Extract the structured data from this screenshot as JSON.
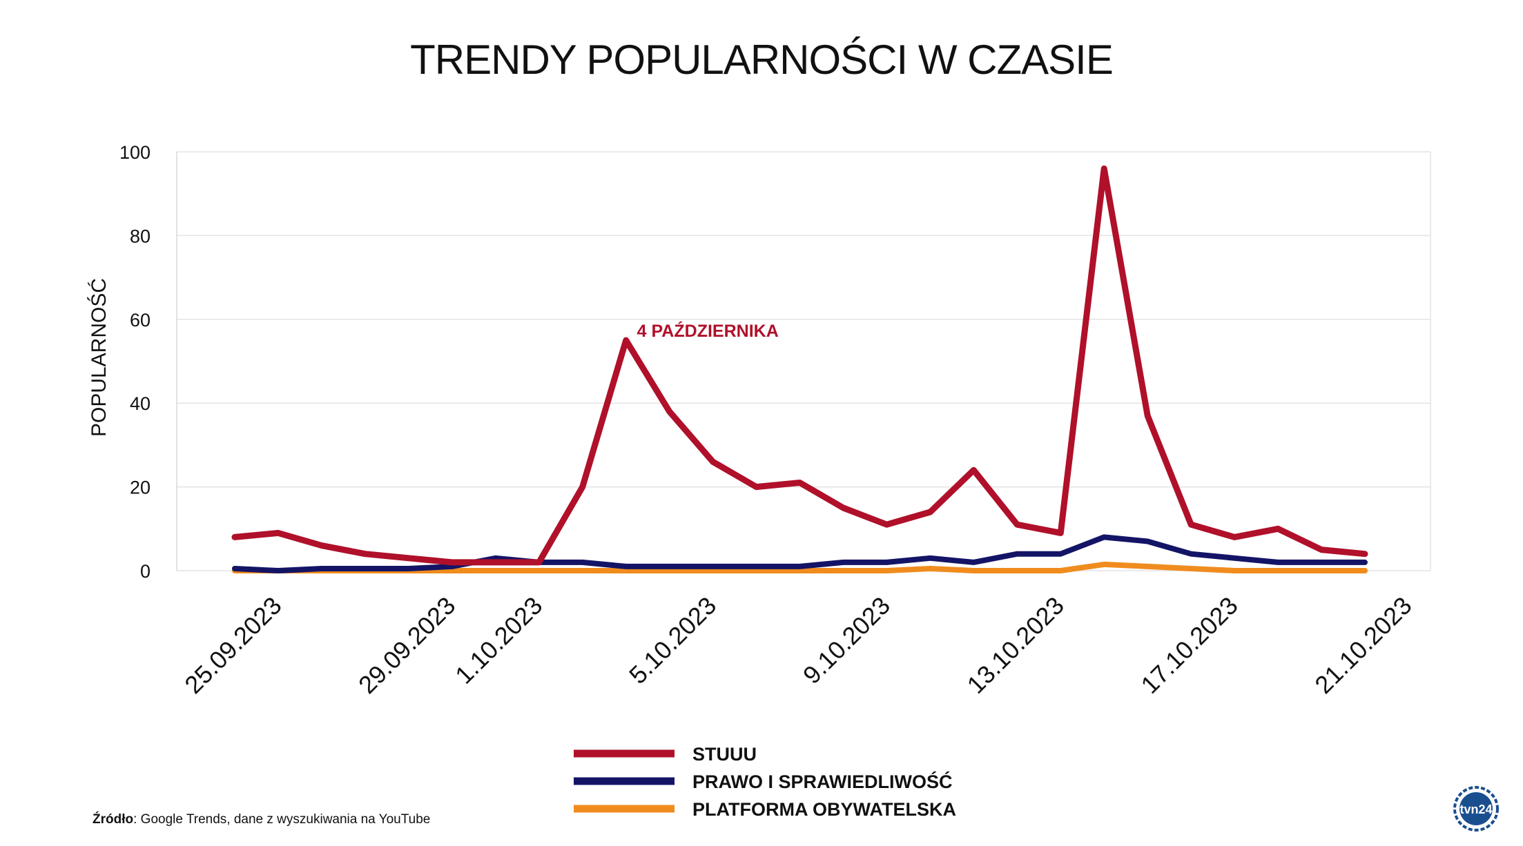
{
  "title": "TRENDY POPULARNOŚCI W CZASIE",
  "source": {
    "label": "Źródło",
    "text": ": Google Trends, dane z wyszukiwania na YouTube"
  },
  "logo": {
    "text": "tvn24",
    "icon": "tvn24-logo"
  },
  "chart_data": {
    "type": "line",
    "title": "TRENDY POPULARNOŚCI W CZASIE",
    "xlabel": "",
    "ylabel": "POPULARNOŚĆ",
    "ylim": [
      0,
      100
    ],
    "yticks": [
      0,
      20,
      40,
      60,
      80,
      100
    ],
    "x": [
      "25.09.2023",
      "26.09.2023",
      "27.09.2023",
      "28.09.2023",
      "29.09.2023",
      "30.09.2023",
      "1.10.2023",
      "2.10.2023",
      "3.10.2023",
      "4.10.2023",
      "5.10.2023",
      "6.10.2023",
      "7.10.2023",
      "8.10.2023",
      "9.10.2023",
      "10.10.2023",
      "11.10.2023",
      "12.10.2023",
      "13.10.2023",
      "14.10.2023",
      "15.10.2023",
      "16.10.2023",
      "17.10.2023",
      "18.10.2023",
      "19.10.2023",
      "20.10.2023",
      "21.10.2023"
    ],
    "xtick_labels": [
      "25.09.2023",
      "29.09.2023",
      "1.10.2023",
      "5.10.2023",
      "9.10.2023",
      "13.10.2023",
      "17.10.2023",
      "21.10.2023"
    ],
    "grid": true,
    "legend": "bottom-center",
    "series": [
      {
        "name": "STUUU",
        "color": "#b0102a",
        "values": [
          8,
          9,
          6,
          4,
          3,
          2,
          2,
          2,
          20,
          55,
          38,
          26,
          20,
          21,
          15,
          11,
          14,
          24,
          11,
          9,
          96,
          37,
          11,
          8,
          10,
          5,
          4
        ]
      },
      {
        "name": "PRAWO I SPRAWIEDLIWOŚĆ",
        "color": "#141466",
        "values": [
          0.5,
          0,
          0.5,
          0.5,
          0.5,
          1,
          3,
          2,
          2,
          1,
          1,
          1,
          1,
          1,
          2,
          2,
          3,
          2,
          4,
          4,
          8,
          7,
          4,
          3,
          2,
          2,
          2
        ]
      },
      {
        "name": "PLATFORMA OBYWATELSKA",
        "color": "#f08c1e",
        "values": [
          0,
          0,
          0,
          0,
          0,
          0,
          0,
          0,
          0,
          0,
          0,
          0,
          0,
          0,
          0,
          0,
          0.5,
          0,
          0,
          0,
          1.5,
          1,
          0.5,
          0,
          0,
          0,
          0
        ]
      }
    ],
    "annotations": [
      {
        "x": "4.10.2023",
        "text": "4 PAŹDZIERNIKA",
        "color": "#b0102a"
      }
    ]
  }
}
